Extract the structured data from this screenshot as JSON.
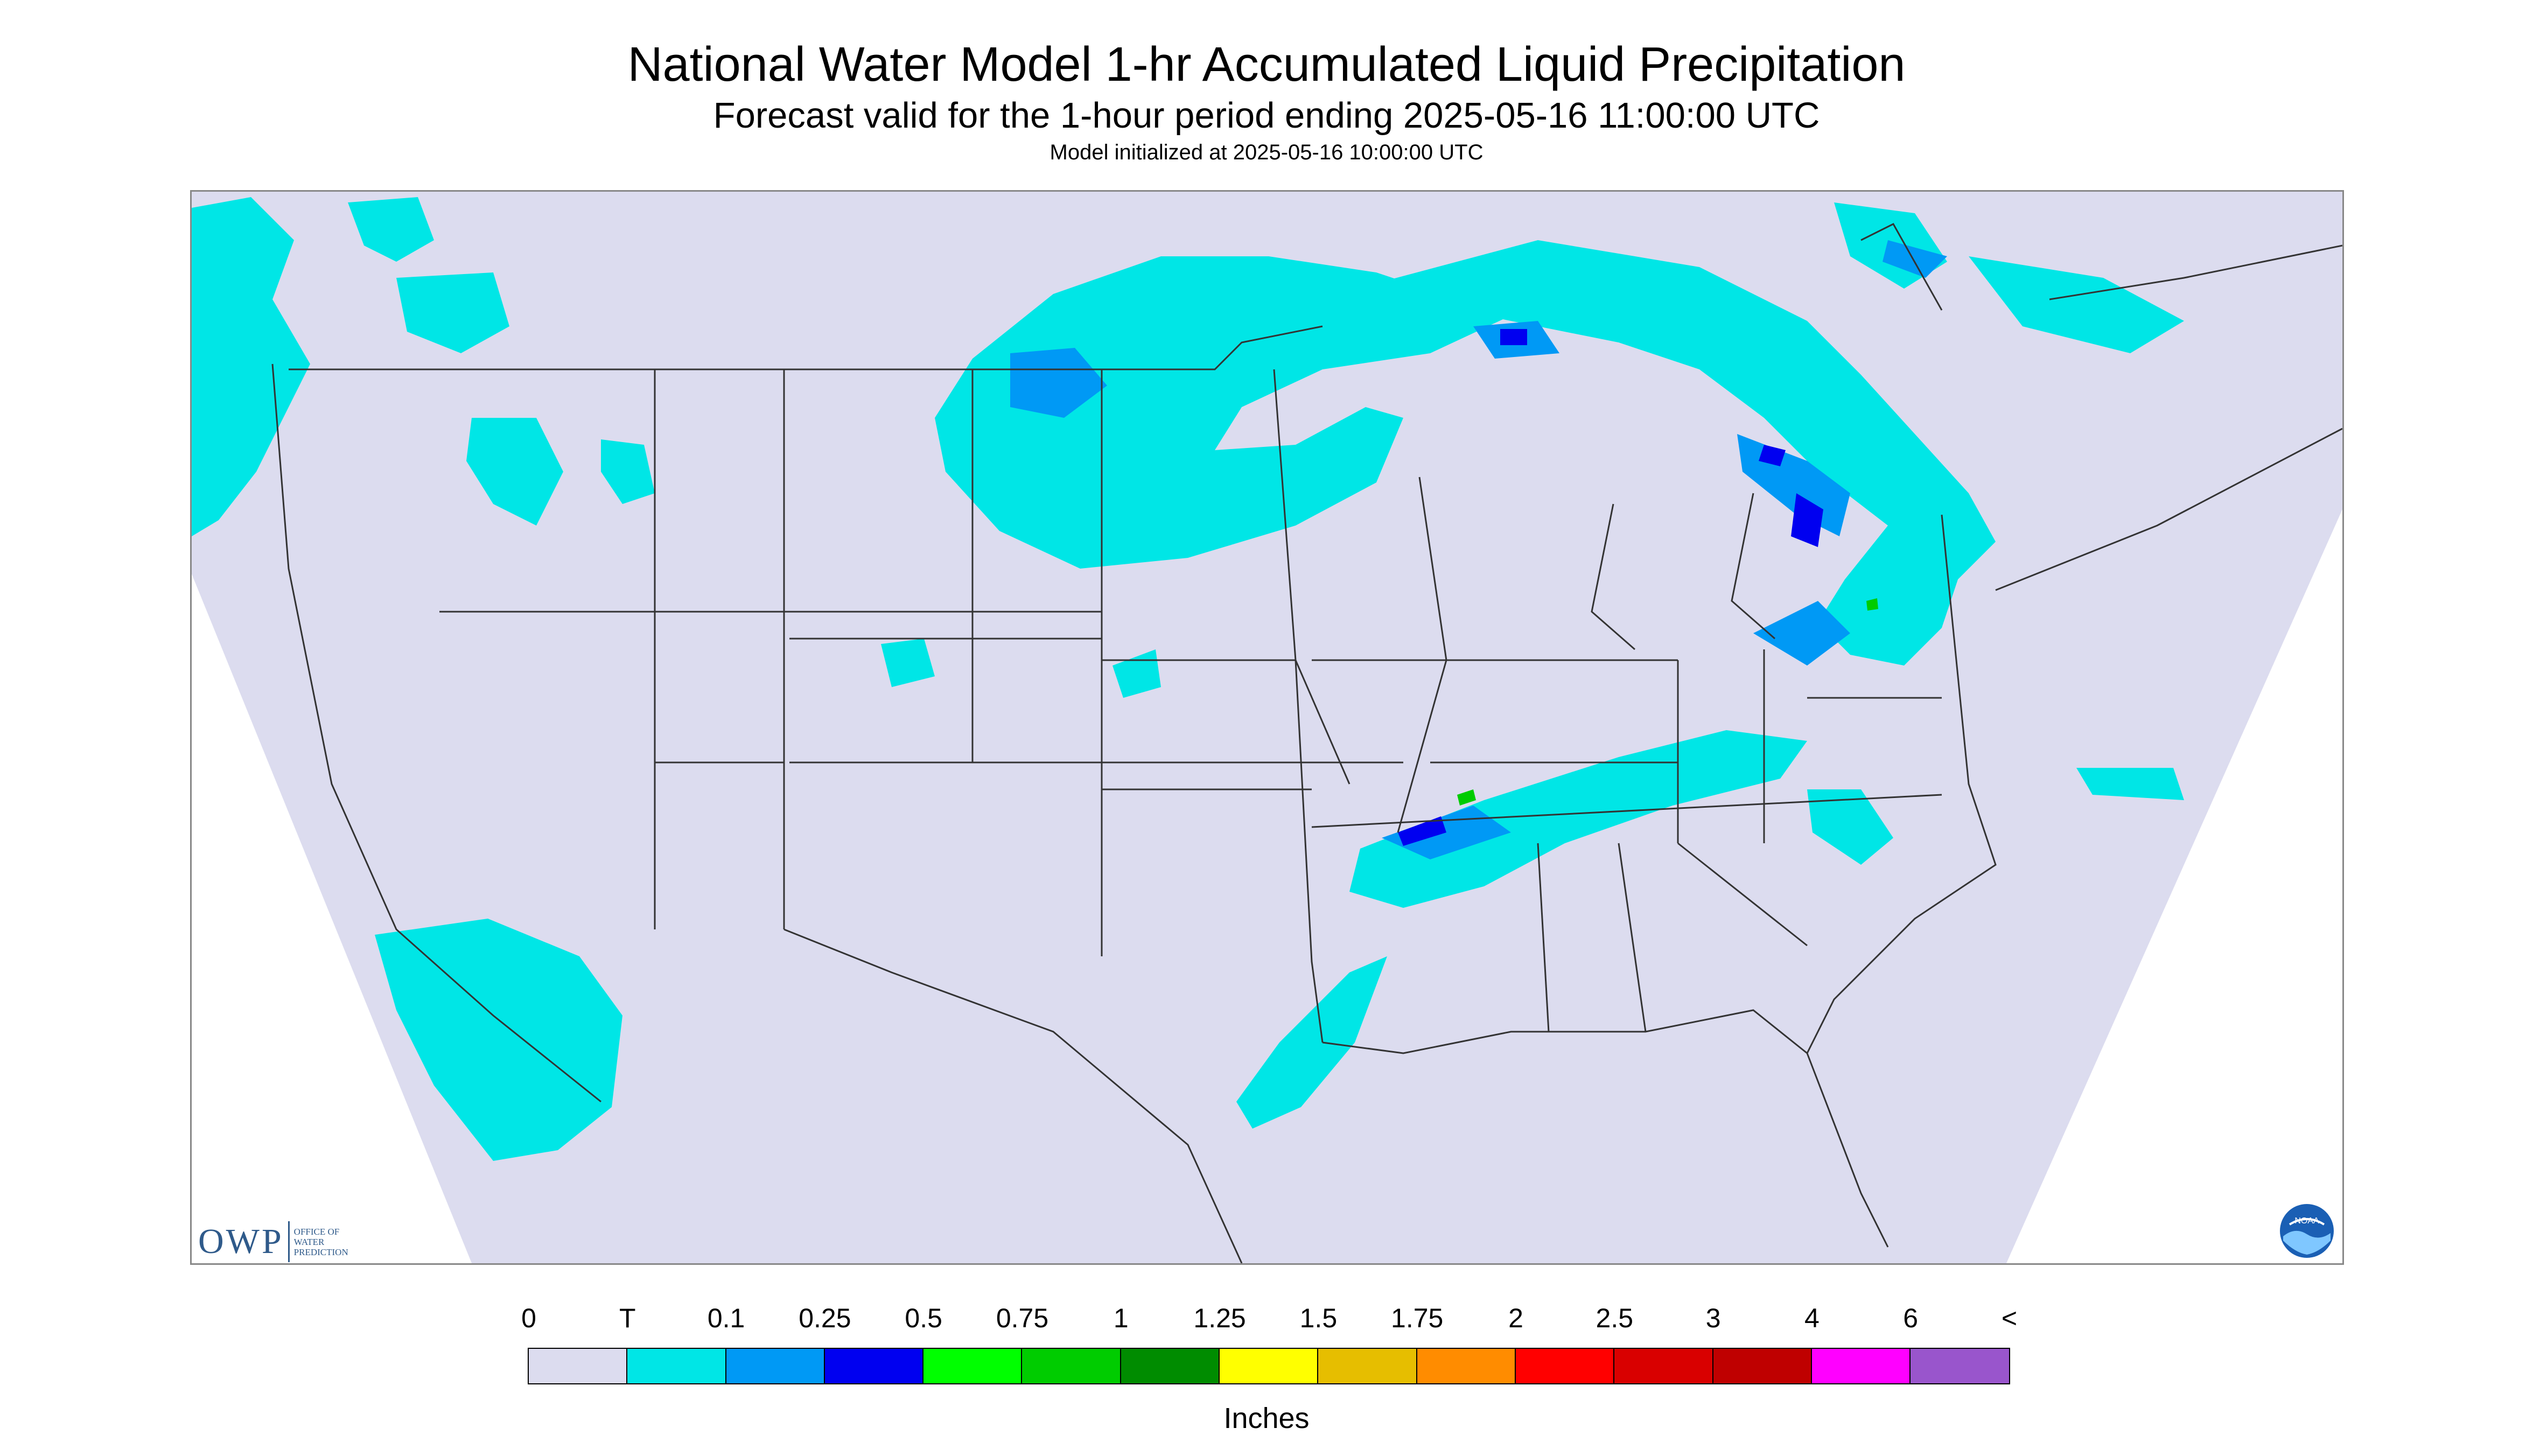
{
  "title": "National Water Model 1-hr Accumulated Liquid Precipitation",
  "subtitle": "Forecast valid for the 1-hour period ending 2025-05-16 11:00:00 UTC",
  "init_text": "Model initialized at 2025-05-16 10:00:00 UTC",
  "legend": {
    "labels": [
      "0",
      "T",
      "0.1",
      "0.25",
      "0.5",
      "0.75",
      "1",
      "1.25",
      "1.5",
      "1.75",
      "2",
      "2.5",
      "3",
      "4",
      "6",
      "<"
    ],
    "colors": [
      "#dcdcef",
      "#00e6e6",
      "#0099f5",
      "#0000f0",
      "#00ff00",
      "#00cc00",
      "#008c00",
      "#ffff00",
      "#e6be00",
      "#ff8c00",
      "#ff0000",
      "#d90000",
      "#bf0000",
      "#ff00ff",
      "#9955cc"
    ],
    "units": "Inches"
  },
  "logos": {
    "owp_mark": "OWP",
    "owp_text": "OFFICE OF WATER PREDICTION",
    "noaa": "NOAA"
  },
  "map": {
    "background_color": "#dcdcef",
    "trace_color": "#00e6e6",
    "light_color": "#0099f5",
    "medium_color": "#0000f0",
    "heavy_color": "#00cc00",
    "outline_color": "#333333"
  }
}
